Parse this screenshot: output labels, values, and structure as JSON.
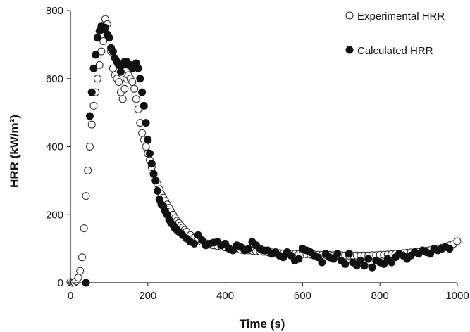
{
  "chart_data": {
    "type": "scatter",
    "xlabel": "Time (s)",
    "ylabel": "HRR (kW/m²)",
    "xlim": [
      0,
      1000
    ],
    "ylim": [
      0,
      800
    ],
    "x_ticks": [
      0,
      200,
      400,
      600,
      800,
      1000
    ],
    "y_ticks": [
      0,
      200,
      400,
      600,
      800
    ],
    "grid": false,
    "legend_position": "top-right",
    "series": [
      {
        "name": "Experimental HRR",
        "marker": "open-circle",
        "color": "#2a2a2a",
        "x": [
          0,
          5,
          10,
          15,
          20,
          25,
          30,
          35,
          40,
          45,
          50,
          55,
          60,
          65,
          70,
          75,
          80,
          85,
          90,
          95,
          100,
          105,
          110,
          115,
          120,
          125,
          130,
          135,
          140,
          145,
          150,
          155,
          160,
          165,
          170,
          175,
          180,
          185,
          190,
          195,
          200,
          205,
          210,
          215,
          220,
          225,
          230,
          235,
          240,
          245,
          250,
          255,
          260,
          265,
          270,
          275,
          280,
          285,
          290,
          295,
          300,
          310,
          320,
          330,
          340,
          350,
          360,
          370,
          380,
          390,
          400,
          410,
          420,
          430,
          440,
          450,
          460,
          470,
          480,
          490,
          500,
          510,
          520,
          530,
          540,
          550,
          560,
          570,
          580,
          590,
          600,
          610,
          620,
          630,
          640,
          650,
          660,
          670,
          680,
          690,
          700,
          710,
          720,
          730,
          740,
          750,
          760,
          770,
          780,
          790,
          800,
          810,
          820,
          830,
          840,
          850,
          860,
          870,
          880,
          890,
          900,
          910,
          920,
          930,
          940,
          950,
          960,
          970,
          980,
          990,
          1000
        ],
        "y": [
          2,
          0,
          1,
          5,
          15,
          35,
          75,
          160,
          255,
          330,
          400,
          465,
          520,
          560,
          600,
          640,
          680,
          710,
          775,
          760,
          720,
          680,
          630,
          610,
          600,
          590,
          560,
          540,
          570,
          600,
          610,
          600,
          590,
          570,
          540,
          510,
          470,
          440,
          420,
          400,
          380,
          360,
          340,
          320,
          300,
          290,
          275,
          260,
          250,
          240,
          230,
          220,
          210,
          200,
          190,
          182,
          175,
          168,
          162,
          155,
          150,
          140,
          132,
          126,
          120,
          116,
          112,
          110,
          108,
          106,
          104,
          102,
          100,
          98,
          97,
          96,
          95,
          94,
          93,
          92,
          91,
          90,
          89,
          88,
          87,
          86,
          86,
          85,
          85,
          84,
          84,
          84,
          83,
          83,
          82,
          82,
          82,
          82,
          81,
          81,
          81,
          80,
          80,
          80,
          80,
          80,
          80,
          80,
          81,
          81,
          82,
          82,
          83,
          84,
          85,
          86,
          87,
          88,
          89,
          90,
          91,
          92,
          94,
          96,
          98,
          100,
          103,
          106,
          110,
          114,
          122
        ]
      },
      {
        "name": "Calculated HRR",
        "marker": "filled-circle",
        "color": "#111111",
        "x": [
          40,
          50,
          55,
          60,
          65,
          70,
          75,
          80,
          85,
          90,
          95,
          100,
          105,
          110,
          115,
          120,
          125,
          130,
          135,
          140,
          145,
          150,
          155,
          160,
          165,
          170,
          175,
          180,
          185,
          190,
          195,
          200,
          205,
          210,
          215,
          220,
          225,
          230,
          235,
          240,
          245,
          250,
          255,
          260,
          265,
          270,
          275,
          280,
          290,
          300,
          310,
          320,
          330,
          340,
          350,
          360,
          370,
          380,
          390,
          400,
          410,
          420,
          430,
          440,
          450,
          460,
          470,
          480,
          490,
          500,
          510,
          520,
          530,
          540,
          550,
          560,
          570,
          580,
          590,
          600,
          610,
          620,
          630,
          640,
          650,
          660,
          670,
          680,
          690,
          700,
          710,
          720,
          730,
          740,
          750,
          760,
          770,
          780,
          790,
          800,
          810,
          820,
          830,
          840,
          850,
          860,
          870,
          880,
          890,
          900,
          910,
          920,
          930,
          940,
          950,
          960,
          970,
          980
        ],
        "y": [
          0,
          490,
          560,
          630,
          670,
          720,
          740,
          755,
          745,
          750,
          730,
          720,
          690,
          680,
          660,
          650,
          640,
          620,
          640,
          650,
          650,
          640,
          640,
          630,
          640,
          645,
          630,
          600,
          560,
          520,
          470,
          420,
          380,
          350,
          320,
          300,
          270,
          245,
          230,
          225,
          210,
          200,
          185,
          175,
          170,
          160,
          155,
          150,
          140,
          130,
          120,
          115,
          140,
          125,
          110,
          115,
          118,
          120,
          110,
          115,
          100,
          95,
          110,
          105,
          95,
          100,
          120,
          110,
          100,
          95,
          95,
          85,
          90,
          80,
          75,
          90,
          80,
          65,
          70,
          100,
          95,
          90,
          80,
          75,
          60,
          85,
          75,
          70,
          85,
          65,
          55,
          85,
          60,
          50,
          65,
          50,
          70,
          45,
          65,
          60,
          55,
          70,
          60,
          75,
          85,
          80,
          70,
          80,
          90,
          85,
          95,
          90,
          85,
          100,
          95,
          100,
          105,
          100
        ]
      }
    ]
  }
}
